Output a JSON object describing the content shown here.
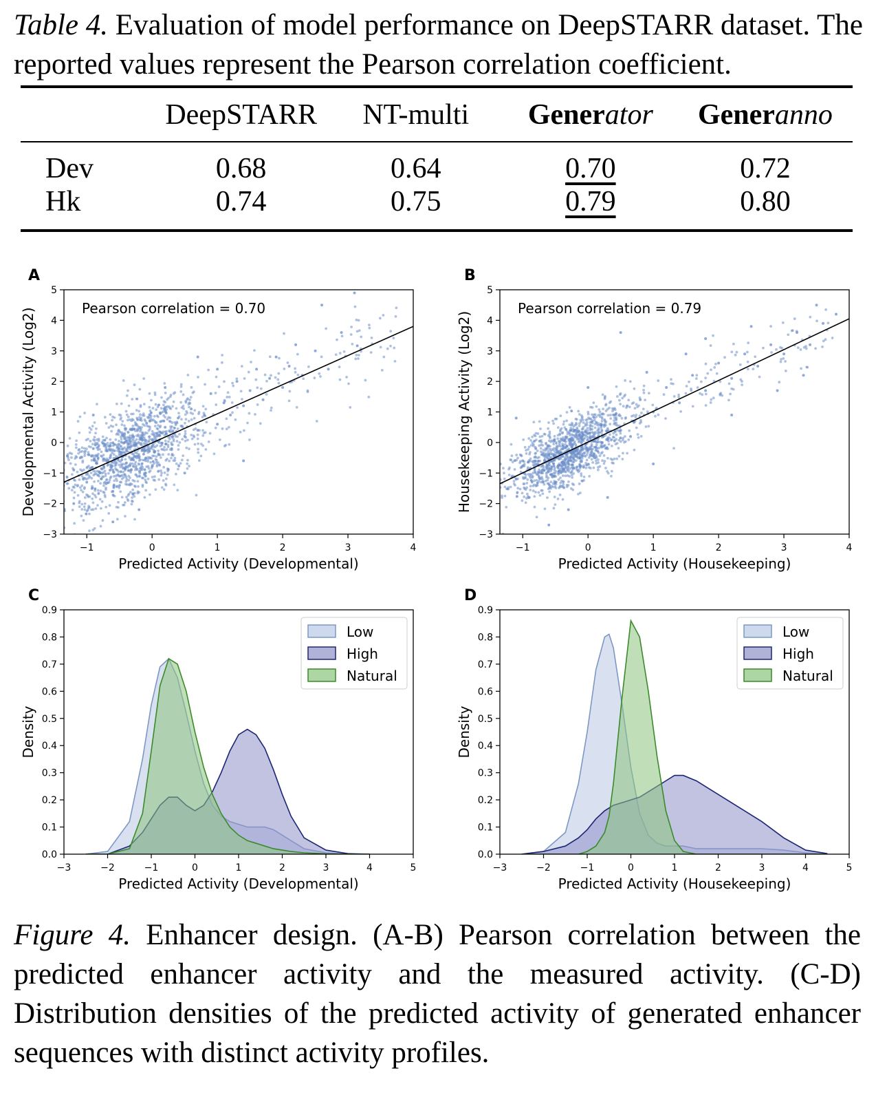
{
  "table_caption": {
    "label": "Table 4.",
    "text": "Evaluation of model performance on DeepSTARR dataset. The reported values represent the Pearson correlation coefficient."
  },
  "table": {
    "columns": [
      {
        "plain": "DeepSTARR"
      },
      {
        "plain": "NT-multi"
      },
      {
        "bold": "Gener",
        "italic": "ator"
      },
      {
        "bold": "Gener",
        "italic": "anno"
      }
    ],
    "rows": [
      {
        "label": "Dev",
        "values": [
          "0.68",
          "0.64",
          "0.70",
          "0.72"
        ]
      },
      {
        "label": "Hk",
        "values": [
          "0.74",
          "0.75",
          "0.79",
          "0.80"
        ]
      }
    ],
    "styles": {
      "underline_column": 2,
      "bold_column": 3
    }
  },
  "chart_data": [
    {
      "panel": "A",
      "type": "scatter",
      "annotation": "Pearson correlation = 0.70",
      "xlabel": "Predicted Activity (Developmental)",
      "ylabel": "Developmental Activity (Log2)",
      "xlim": [
        -1.35,
        4
      ],
      "ylim": [
        -3,
        5
      ],
      "xticks": [
        "−1",
        "0",
        "1",
        "2",
        "3",
        "4"
      ],
      "yticks": [
        "−3",
        "−2",
        "−1",
        "0",
        "1",
        "2",
        "3",
        "4",
        "5"
      ],
      "points": [
        [
          -1.2,
          -0.9
        ],
        [
          -1.1,
          -0.5
        ],
        [
          -1.0,
          -1.3
        ],
        [
          -0.9,
          -0.2
        ],
        [
          -0.8,
          -1.0
        ],
        [
          -0.7,
          -0.6
        ],
        [
          -0.6,
          -1.6
        ],
        [
          -0.5,
          -0.3
        ],
        [
          -0.4,
          -0.8
        ],
        [
          -0.3,
          0.2
        ],
        [
          -0.2,
          -0.5
        ],
        [
          -0.1,
          -1.1
        ],
        [
          0.0,
          0.1
        ],
        [
          0.1,
          -0.4
        ],
        [
          0.2,
          0.5
        ],
        [
          0.3,
          -0.2
        ],
        [
          0.4,
          0.8
        ],
        [
          0.5,
          0.2
        ],
        [
          0.6,
          1.1
        ],
        [
          0.7,
          0.4
        ],
        [
          0.8,
          0.9
        ],
        [
          0.9,
          1.6
        ],
        [
          1.0,
          0.6
        ],
        [
          1.1,
          1.3
        ],
        [
          1.2,
          0.9
        ],
        [
          1.3,
          2.0
        ],
        [
          1.4,
          1.2
        ],
        [
          1.5,
          1.7
        ],
        [
          1.6,
          2.4
        ],
        [
          1.7,
          1.4
        ],
        [
          1.8,
          2.1
        ],
        [
          1.9,
          2.8
        ],
        [
          2.0,
          1.8
        ],
        [
          2.1,
          2.5
        ],
        [
          2.2,
          3.2
        ],
        [
          2.3,
          2.2
        ],
        [
          2.5,
          3.0
        ],
        [
          2.7,
          2.4
        ],
        [
          2.9,
          3.6
        ],
        [
          3.1,
          4.9
        ],
        [
          -0.6,
          -2.6
        ],
        [
          -0.2,
          -2.2
        ],
        [
          0.5,
          -1.0
        ],
        [
          1.0,
          2.4
        ],
        [
          -1.2,
          -2.0
        ],
        [
          0.2,
          1.8
        ],
        [
          1.4,
          -0.6
        ],
        [
          2.6,
          4.5
        ],
        [
          -0.9,
          0.9
        ],
        [
          0.7,
          2.8
        ]
      ],
      "fit_line": {
        "x": [
          -1.35,
          4
        ],
        "y": [
          -1.3,
          3.8
        ]
      }
    },
    {
      "panel": "B",
      "type": "scatter",
      "annotation": "Pearson correlation = 0.79",
      "xlabel": "Predicted Activity (Housekeeping)",
      "ylabel": "Housekeeping Activity (Log2)",
      "xlim": [
        -1.35,
        4
      ],
      "ylim": [
        -3,
        5
      ],
      "xticks": [
        "−1",
        "0",
        "1",
        "2",
        "3",
        "4"
      ],
      "yticks": [
        "−3",
        "−2",
        "−1",
        "0",
        "1",
        "2",
        "3",
        "4",
        "5"
      ],
      "points": [
        [
          -1.1,
          -1.2
        ],
        [
          -1.0,
          -0.6
        ],
        [
          -0.9,
          -1.8
        ],
        [
          -0.8,
          -0.2
        ],
        [
          -0.7,
          -0.9
        ],
        [
          -0.6,
          -0.4
        ],
        [
          -0.5,
          -1.3
        ],
        [
          -0.4,
          0.1
        ],
        [
          -0.3,
          -0.6
        ],
        [
          -0.2,
          0.4
        ],
        [
          -0.1,
          -0.2
        ],
        [
          0.0,
          0.3
        ],
        [
          0.1,
          -0.5
        ],
        [
          0.2,
          0.6
        ],
        [
          0.3,
          0.1
        ],
        [
          0.4,
          0.9
        ],
        [
          0.5,
          0.4
        ],
        [
          0.6,
          1.2
        ],
        [
          0.7,
          0.7
        ],
        [
          0.8,
          1.4
        ],
        [
          1.0,
          1.0
        ],
        [
          1.2,
          1.8
        ],
        [
          1.4,
          1.3
        ],
        [
          1.6,
          2.2
        ],
        [
          1.8,
          1.7
        ],
        [
          2.0,
          2.6
        ],
        [
          2.2,
          2.1
        ],
        [
          2.4,
          2.9
        ],
        [
          2.6,
          2.5
        ],
        [
          2.8,
          3.2
        ],
        [
          3.0,
          2.9
        ],
        [
          3.2,
          3.6
        ],
        [
          3.4,
          3.2
        ],
        [
          3.6,
          3.9
        ],
        [
          3.8,
          4.2
        ],
        [
          -0.6,
          -2.7
        ],
        [
          0.0,
          1.8
        ],
        [
          1.0,
          -0.7
        ],
        [
          2.5,
          3.8
        ],
        [
          3.5,
          4.5
        ],
        [
          -1.1,
          0.8
        ],
        [
          0.3,
          -1.8
        ],
        [
          1.5,
          2.9
        ],
        [
          2.9,
          1.7
        ],
        [
          0.5,
          3.6
        ],
        [
          -0.3,
          -2.2
        ],
        [
          2.2,
          0.9
        ],
        [
          3.3,
          2.2
        ],
        [
          1.8,
          3.4
        ],
        [
          0.9,
          2.3
        ]
      ],
      "fit_line": {
        "x": [
          -1.35,
          4
        ],
        "y": [
          -1.35,
          4.05
        ]
      }
    },
    {
      "panel": "C",
      "type": "area",
      "xlabel": "Predicted Activity (Developmental)",
      "ylabel": "Density",
      "xlim": [
        -3,
        5
      ],
      "ylim": [
        0,
        0.9
      ],
      "xticks": [
        "−3",
        "−2",
        "−1",
        "0",
        "1",
        "2",
        "3",
        "4",
        "5"
      ],
      "yticks": [
        "0.0",
        "0.1",
        "0.2",
        "0.3",
        "0.4",
        "0.5",
        "0.6",
        "0.7",
        "0.8",
        "0.9"
      ],
      "legend": {
        "position": "top-right",
        "entries": [
          "Low",
          "High",
          "Natural"
        ]
      },
      "x": [
        -2.5,
        -2.0,
        -1.5,
        -1.2,
        -1.0,
        -0.8,
        -0.6,
        -0.4,
        -0.2,
        0.0,
        0.2,
        0.4,
        0.6,
        0.8,
        1.0,
        1.2,
        1.4,
        1.6,
        1.8,
        2.0,
        2.2,
        2.5,
        3.0,
        3.5,
        4.0
      ],
      "series": [
        {
          "name": "Low",
          "color": "#7d97c4",
          "fill": "#b9c9e6",
          "values": [
            0.0,
            0.01,
            0.12,
            0.35,
            0.55,
            0.69,
            0.72,
            0.65,
            0.52,
            0.38,
            0.26,
            0.18,
            0.14,
            0.12,
            0.11,
            0.1,
            0.1,
            0.1,
            0.09,
            0.07,
            0.05,
            0.02,
            0.005,
            0.0,
            0.0
          ]
        },
        {
          "name": "High",
          "color": "#1c2575",
          "fill": "#8f91c8",
          "values": [
            0.0,
            0.0,
            0.03,
            0.08,
            0.13,
            0.18,
            0.21,
            0.21,
            0.18,
            0.16,
            0.18,
            0.23,
            0.3,
            0.38,
            0.44,
            0.46,
            0.44,
            0.39,
            0.31,
            0.22,
            0.14,
            0.06,
            0.015,
            0.002,
            0.0
          ]
        },
        {
          "name": "Natural",
          "color": "#3a8a2a",
          "fill": "#8cc57d",
          "values": [
            0.0,
            0.0,
            0.02,
            0.15,
            0.38,
            0.62,
            0.72,
            0.7,
            0.6,
            0.45,
            0.32,
            0.22,
            0.15,
            0.1,
            0.07,
            0.05,
            0.04,
            0.03,
            0.02,
            0.015,
            0.01,
            0.005,
            0.001,
            0.0,
            0.0
          ]
        }
      ]
    },
    {
      "panel": "D",
      "type": "area",
      "xlabel": "Predicted Activity (Housekeeping)",
      "ylabel": "Density",
      "xlim": [
        -3,
        5
      ],
      "ylim": [
        0,
        0.9
      ],
      "xticks": [
        "−3",
        "−2",
        "−1",
        "0",
        "1",
        "2",
        "3",
        "4",
        "5"
      ],
      "yticks": [
        "0.0",
        "0.1",
        "0.2",
        "0.3",
        "0.4",
        "0.5",
        "0.6",
        "0.7",
        "0.8",
        "0.9"
      ],
      "legend": {
        "position": "top-right",
        "entries": [
          "Low",
          "High",
          "Natural"
        ]
      },
      "x": [
        -2.5,
        -2.0,
        -1.5,
        -1.2,
        -1.0,
        -0.8,
        -0.6,
        -0.5,
        -0.4,
        -0.2,
        0.0,
        0.2,
        0.4,
        0.6,
        0.8,
        1.0,
        1.2,
        1.5,
        2.0,
        2.5,
        3.0,
        3.5,
        4.0,
        4.5
      ],
      "series": [
        {
          "name": "Low",
          "color": "#7d97c4",
          "fill": "#b9c9e6",
          "values": [
            0.0,
            0.01,
            0.08,
            0.26,
            0.45,
            0.68,
            0.8,
            0.81,
            0.76,
            0.55,
            0.32,
            0.15,
            0.07,
            0.04,
            0.03,
            0.03,
            0.03,
            0.02,
            0.02,
            0.02,
            0.02,
            0.015,
            0.005,
            0.0
          ]
        },
        {
          "name": "High",
          "color": "#1c2575",
          "fill": "#8f91c8",
          "values": [
            0.0,
            0.01,
            0.03,
            0.06,
            0.09,
            0.13,
            0.16,
            0.17,
            0.18,
            0.19,
            0.2,
            0.21,
            0.23,
            0.25,
            0.27,
            0.29,
            0.29,
            0.27,
            0.22,
            0.17,
            0.12,
            0.06,
            0.015,
            0.002
          ]
        },
        {
          "name": "Natural",
          "color": "#3a8a2a",
          "fill": "#8cc57d",
          "values": [
            0.0,
            0.0,
            0.0,
            0.0,
            0.01,
            0.03,
            0.08,
            0.14,
            0.26,
            0.58,
            0.86,
            0.8,
            0.6,
            0.36,
            0.16,
            0.05,
            0.01,
            0.0,
            0.0,
            0.0,
            0.0,
            0.0,
            0.0,
            0.0
          ]
        }
      ]
    }
  ],
  "figure_caption": {
    "label": "Figure 4.",
    "text": "Enhancer design. (A-B) Pearson correlation between the predicted enhancer activity and the measured activity. (C-D) Distribution densities of the predicted activity of generated enhancer sequences with distinct activity profiles."
  }
}
